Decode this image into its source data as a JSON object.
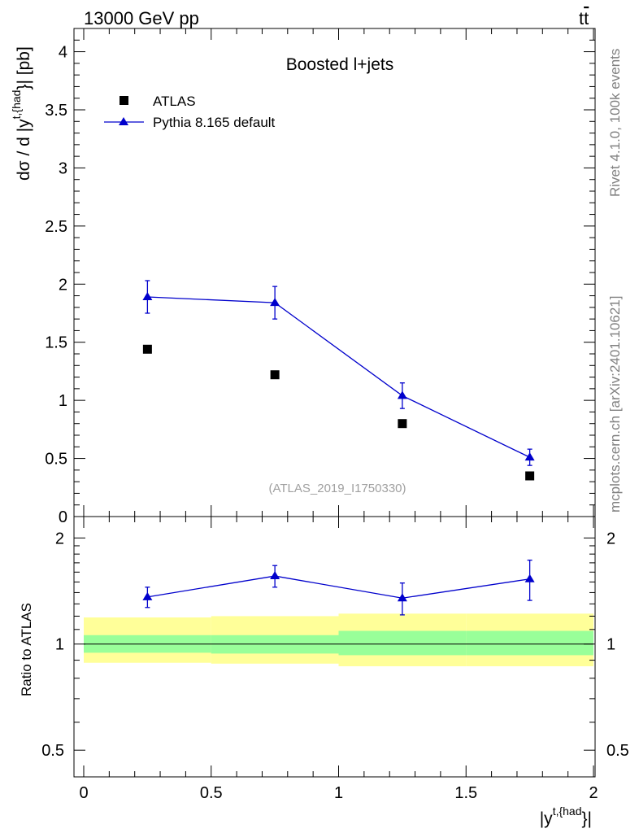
{
  "header": {
    "left": "13000 GeV pp",
    "right_base": "t",
    "right_bar": "t"
  },
  "side_labels": {
    "rivet": "Rivet 4.1.0,  100k events",
    "mcplots": "mcplots.cern.ch [arXiv:2401.10621]"
  },
  "chart_data": [
    {
      "panel": "main",
      "type": "scatter",
      "title": "Boosted l+jets",
      "watermark": "(ATLAS_2019_I1750330)",
      "ylabel": {
        "prefix": "dσ / d |y",
        "sup": "t,{had",
        "sup_close": "}",
        "suffix": "| [pb]"
      },
      "xlim": [
        0,
        2
      ],
      "ylim": [
        0,
        4.2
      ],
      "yticks": [
        0,
        0.5,
        1,
        1.5,
        2,
        2.5,
        3,
        3.5,
        4
      ],
      "ytick_labels": [
        "0",
        "0.5",
        "1",
        "1.5",
        "2",
        "2.5",
        "3",
        "3.5",
        "4"
      ],
      "legend_position": "top-left",
      "series": [
        {
          "name": "ATLAS",
          "marker": "square",
          "color": "#000000",
          "x": [
            0.25,
            0.75,
            1.25,
            1.75
          ],
          "y": [
            1.44,
            1.22,
            0.8,
            0.35
          ]
        },
        {
          "name": "Pythia 8.165 default",
          "marker": "triangle",
          "color": "#0000cc",
          "line": true,
          "x": [
            0.25,
            0.75,
            1.25,
            1.75
          ],
          "y": [
            1.89,
            1.84,
            1.04,
            0.51
          ],
          "yerr": [
            0.14,
            0.14,
            0.11,
            0.07
          ]
        }
      ]
    },
    {
      "panel": "ratio",
      "type": "scatter",
      "ylabel": "Ratio to ATLAS",
      "xlabel": {
        "prefix": "|y",
        "sup": "t,{had",
        "sup_close": "}",
        "suffix": "|"
      },
      "xlim": [
        0,
        2
      ],
      "ylim": [
        0.42,
        2.3
      ],
      "yscale": "log",
      "yticks": [
        0.5,
        1,
        2
      ],
      "ytick_labels": [
        "0.5",
        "1",
        "2"
      ],
      "xticks": [
        0,
        0.5,
        1,
        1.5,
        2
      ],
      "xtick_labels": [
        "0",
        "0.5",
        "1",
        "1.5",
        "2"
      ],
      "bands": [
        {
          "x0": 0,
          "x1": 0.5,
          "inner": [
            0.945,
            1.06
          ],
          "outer": [
            0.885,
            1.19
          ]
        },
        {
          "x0": 0.5,
          "x1": 1,
          "inner": [
            0.94,
            1.06
          ],
          "outer": [
            0.88,
            1.2
          ]
        },
        {
          "x0": 1,
          "x1": 1.5,
          "inner": [
            0.93,
            1.09
          ],
          "outer": [
            0.865,
            1.22
          ]
        },
        {
          "x0": 1.5,
          "x1": 2,
          "inner": [
            0.93,
            1.09
          ],
          "outer": [
            0.865,
            1.22
          ]
        }
      ],
      "band_colors": {
        "inner": "#99ff99",
        "outer": "#ffff99"
      },
      "reference": 1,
      "series": [
        {
          "name": "Pythia 8.165 default",
          "marker": "triangle",
          "color": "#0000cc",
          "x": [
            0.25,
            0.75,
            1.25,
            1.75
          ],
          "y": [
            1.36,
            1.56,
            1.35,
            1.53
          ],
          "yerr": [
            0.09,
            0.11,
            0.14,
            0.2
          ]
        }
      ]
    }
  ]
}
